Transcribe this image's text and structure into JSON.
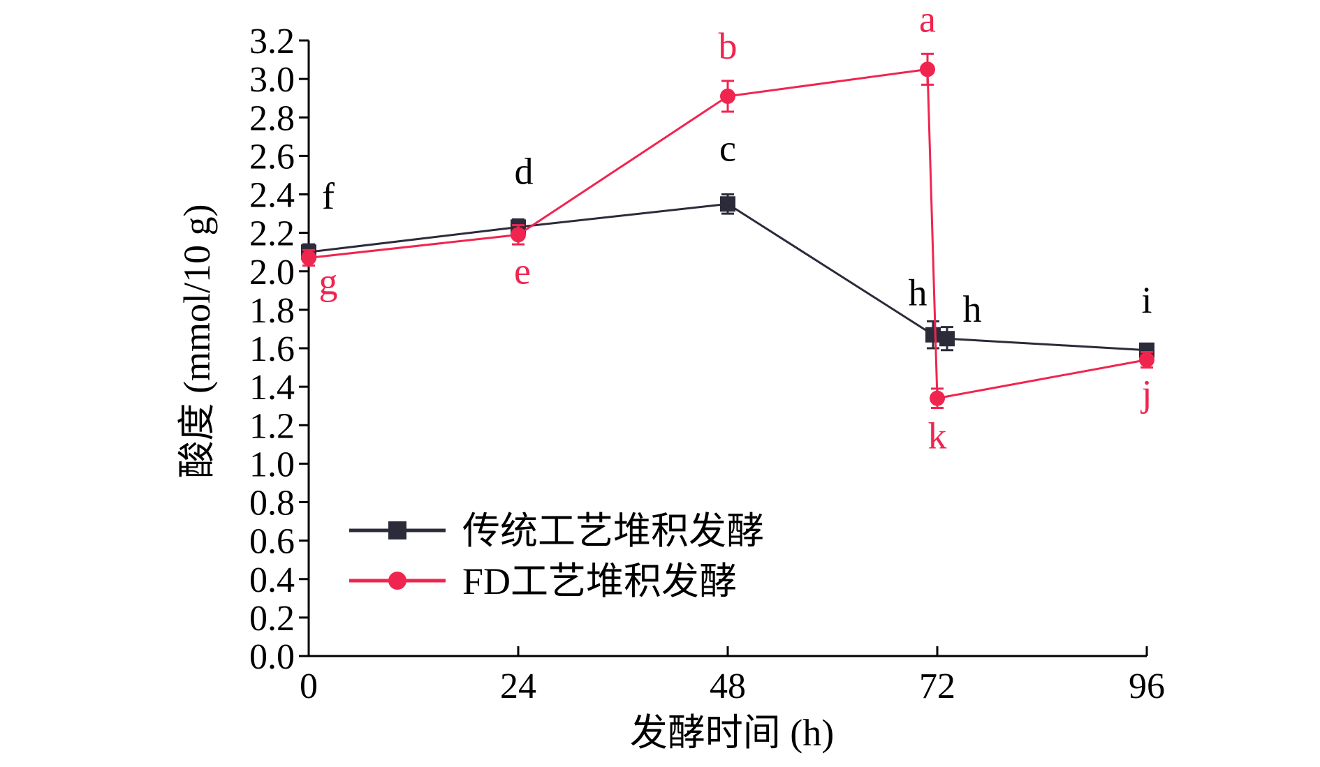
{
  "chart_data": {
    "type": "line",
    "xlabel": "发酵时间 (h)",
    "ylabel": "酸度 (mmol/10 g)",
    "x": [
      0,
      24,
      48,
      72,
      96
    ],
    "xticks": [
      "0",
      "24",
      "48",
      "72",
      "96"
    ],
    "yticks": [
      "0.0",
      "0.2",
      "0.4",
      "0.6",
      "0.8",
      "1.0",
      "1.2",
      "1.4",
      "1.6",
      "1.8",
      "2.0",
      "2.2",
      "2.4",
      "2.6",
      "2.8",
      "3.0",
      "3.2"
    ],
    "xlim": [
      0,
      96
    ],
    "ylim": [
      0,
      3.2
    ],
    "grid": false,
    "legend_position": "bottom-left",
    "series": [
      {
        "name": "传统工艺堆积发酵",
        "color": "#2b2b3a",
        "marker": "square",
        "points": [
          {
            "x": 0,
            "y": 2.1,
            "err": 0.04,
            "label": "f"
          },
          {
            "x": 24,
            "y": 2.23,
            "err": 0.04,
            "label": "d"
          },
          {
            "x": 48,
            "y": 2.35,
            "err": 0.05,
            "label": "c"
          },
          {
            "x": 72,
            "y": 1.67,
            "err": 0.07,
            "label": "h"
          },
          {
            "x": 72,
            "y": 1.65,
            "err": 0.06,
            "label": "h"
          },
          {
            "x": 96,
            "y": 1.59,
            "err": 0.03,
            "label": "i"
          }
        ]
      },
      {
        "name": "FD工艺堆积发酵",
        "color": "#f0254f",
        "marker": "circle",
        "points": [
          {
            "x": 0,
            "y": 2.07,
            "err": 0.04,
            "label": "g"
          },
          {
            "x": 24,
            "y": 2.19,
            "err": 0.05,
            "label": "e"
          },
          {
            "x": 48,
            "y": 2.91,
            "err": 0.08,
            "label": "b"
          },
          {
            "x": 72,
            "y": 3.05,
            "err": 0.08,
            "label": "a"
          },
          {
            "x": 72,
            "y": 1.34,
            "err": 0.05,
            "label": "k"
          },
          {
            "x": 96,
            "y": 1.54,
            "err": 0.04,
            "label": "j"
          }
        ]
      }
    ]
  }
}
